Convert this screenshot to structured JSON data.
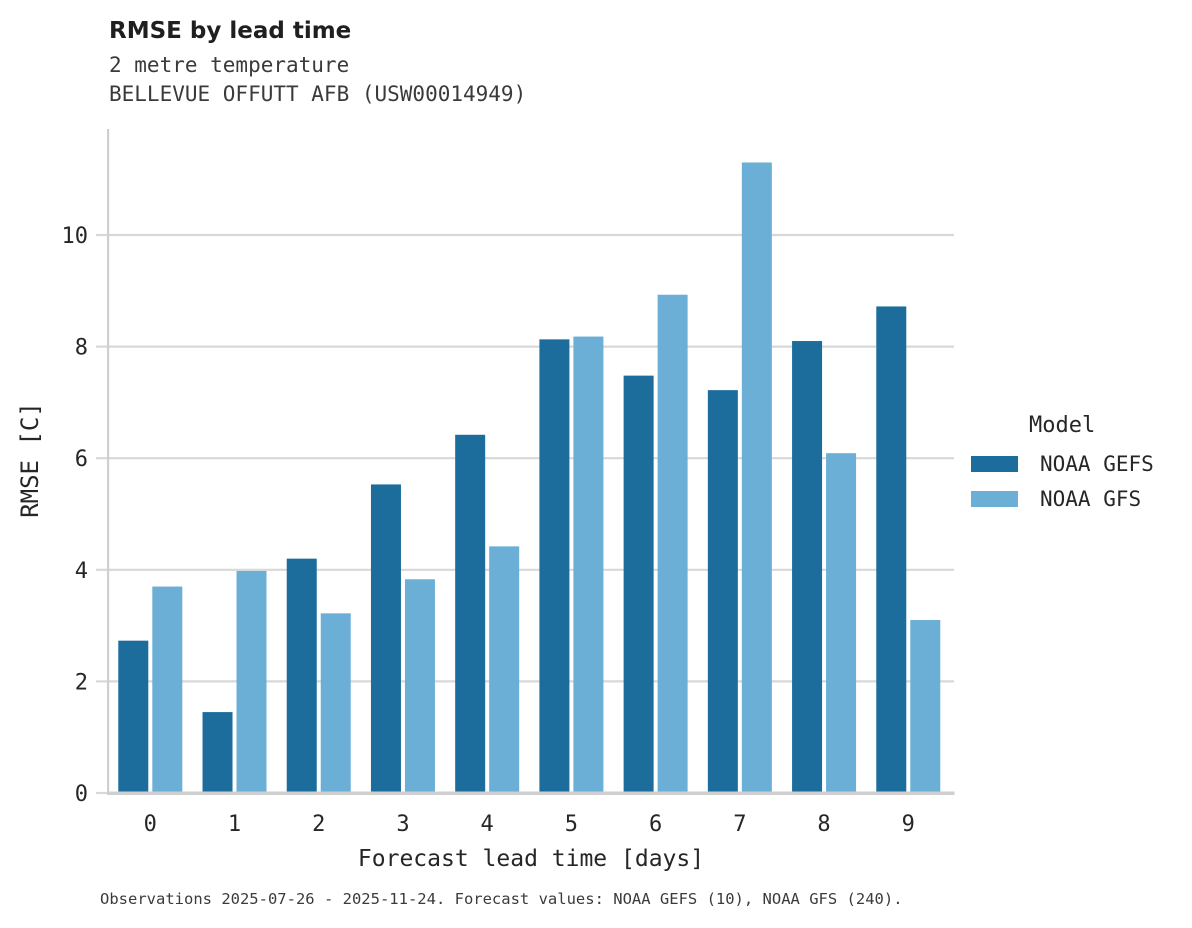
{
  "header": {
    "title": "RMSE by lead time",
    "subtitle1": "2 metre temperature",
    "subtitle2": "BELLEVUE OFFUTT AFB (USW00014949)"
  },
  "chart_data": {
    "type": "bar",
    "title": "RMSE by lead time",
    "subtitle": [
      "2 metre temperature",
      "BELLEVUE OFFUTT AFB (USW00014949)"
    ],
    "categories": [
      0,
      1,
      2,
      3,
      4,
      5,
      6,
      7,
      8,
      9
    ],
    "series": [
      {
        "name": "NOAA GEFS",
        "color": "#1c6d9c",
        "values": [
          2.73,
          1.45,
          4.2,
          5.53,
          6.42,
          8.13,
          7.48,
          7.22,
          8.1,
          8.72
        ]
      },
      {
        "name": "NOAA GFS",
        "color": "#6bafd6",
        "values": [
          3.7,
          3.98,
          3.22,
          3.83,
          4.42,
          8.18,
          8.93,
          11.3,
          6.09,
          3.1
        ]
      }
    ],
    "xlabel": "Forecast lead time [days]",
    "ylabel": "RMSE [C]",
    "yticks": [
      0,
      2,
      4,
      6,
      8,
      10
    ],
    "ylim": [
      0,
      11.9
    ],
    "grid": "horizontal",
    "legend_position": "right",
    "colors": {
      "grid": "#d8d8d8",
      "spine": "#cfcfcf",
      "text": "#262626"
    }
  },
  "legend": {
    "title": "Model",
    "entries": [
      {
        "label": "NOAA GEFS",
        "color": "#1c6d9c"
      },
      {
        "label": "NOAA GFS",
        "color": "#6bafd6"
      }
    ]
  },
  "footer": {
    "text": "Observations 2025-07-26 - 2025-11-24. Forecast values: NOAA GEFS (10), NOAA GFS (240)."
  }
}
